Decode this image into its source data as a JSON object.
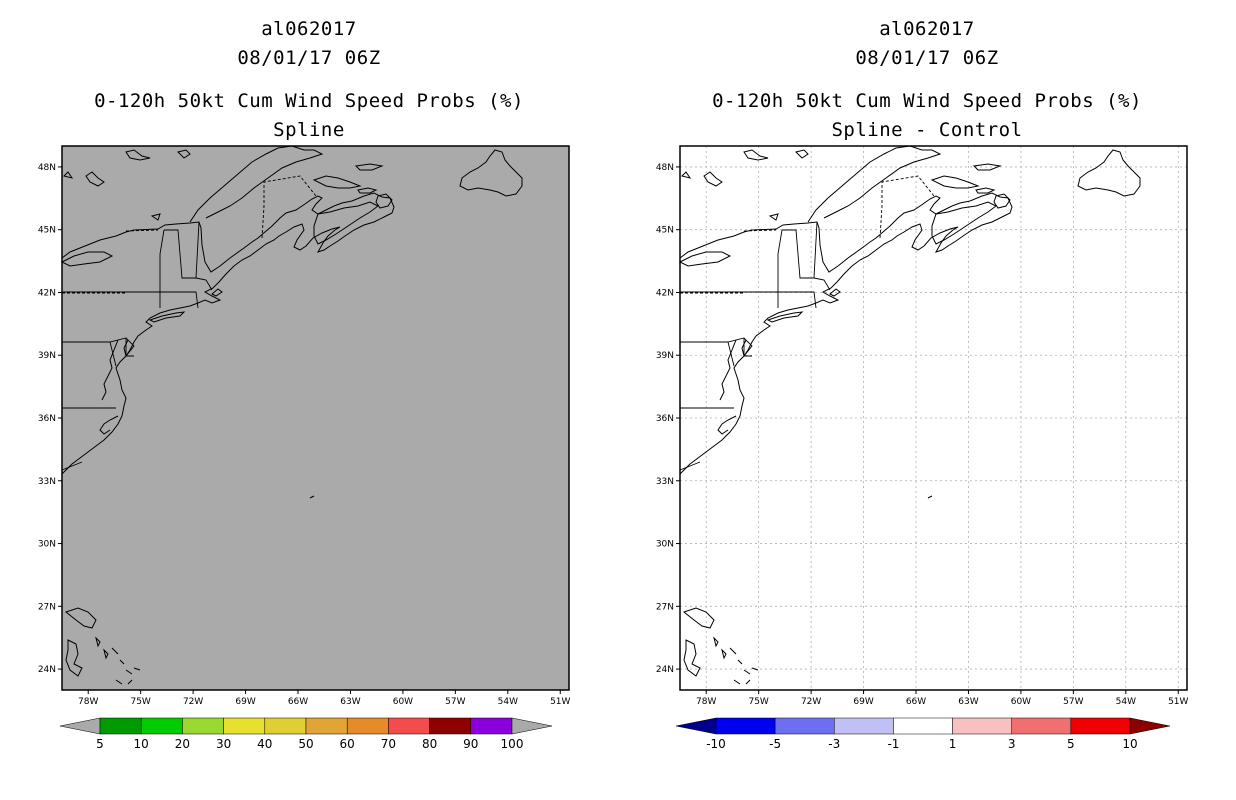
{
  "panels": [
    {
      "id": "spline",
      "storm_id": "al062017",
      "datetime": "08/01/17 06Z",
      "product": "0-120h 50kt Cum Wind Speed Probs (%)",
      "subtitle": "Spline",
      "background": "#aaaaaa",
      "gridlines": false,
      "colorbar": {
        "labels": [
          "5",
          "10",
          "20",
          "30",
          "40",
          "50",
          "60",
          "70",
          "80",
          "90",
          "100"
        ],
        "colors": [
          "#019a01",
          "#00cc00",
          "#99d932",
          "#e8e02e",
          "#e0cf34",
          "#e0a536",
          "#e68b2a",
          "#f34c4c",
          "#8f0000",
          "#8a00dc"
        ],
        "under_color": "#aaaaaa",
        "over_color": "#aaaaaa"
      }
    },
    {
      "id": "spline-control",
      "storm_id": "al062017",
      "datetime": "08/01/17 06Z",
      "product": "0-120h 50kt Cum Wind Speed Probs (%)",
      "subtitle": "Spline - Control",
      "background": "#ffffff",
      "gridlines": true,
      "colorbar": {
        "labels": [
          "-10",
          "-5",
          "-3",
          "-1",
          "1",
          "3",
          "5",
          "10"
        ],
        "colors": [
          "#0000f0",
          "#6e6ef0",
          "#c0c0f5",
          "#ffffff",
          "#f8c0c0",
          "#f07070",
          "#f00000"
        ],
        "under_color": "#00008c",
        "over_color": "#8c0000"
      }
    }
  ],
  "axes": {
    "lat_labels": [
      "48N",
      "45N",
      "42N",
      "39N",
      "36N",
      "33N",
      "30N",
      "27N",
      "24N"
    ],
    "lat_values": [
      48,
      45,
      42,
      39,
      36,
      33,
      30,
      27,
      24
    ],
    "lon_labels": [
      "78W",
      "75W",
      "72W",
      "69W",
      "66W",
      "63W",
      "60W",
      "57W",
      "54W",
      "51W"
    ],
    "lon_values": [
      -78,
      -75,
      -72,
      -69,
      -66,
      -63,
      -60,
      -57,
      -54,
      -51
    ],
    "lon_range": [
      -79.5,
      -50.5
    ],
    "lat_range": [
      23,
      49
    ]
  }
}
